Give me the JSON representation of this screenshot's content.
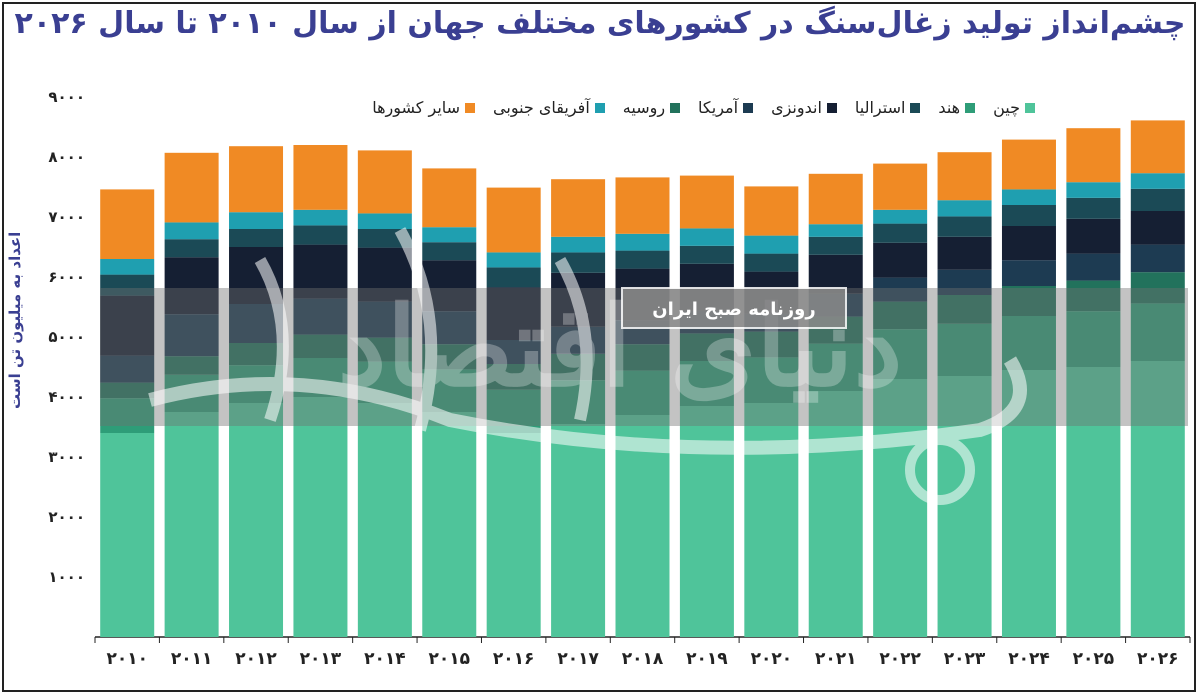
{
  "title": "چشم‌انداز تولید زغال‌سنگ در کشورهای مختلف جهان از سال ۲۰۱۰ تا سال ۲۰۲۶",
  "watermark": {
    "logo_text": "دنیای اقتصاد",
    "badge_text": "روزنامه صبح ایران"
  },
  "colors": {
    "china": "#4fc49a",
    "india": "#2e9d78",
    "russia": "#22725c",
    "south_africa": "#1f9fb0",
    "usa": "#1d3b52",
    "indonesia": "#151f33",
    "australia": "#1b4a56",
    "other": "#f08a24"
  },
  "chart_data": {
    "type": "bar",
    "stacked": true,
    "title": "چشم‌انداز تولید زغال‌سنگ در کشورهای مختلف جهان از سال ۲۰۱۰ تا سال ۲۰۲۶",
    "ylabel": "اعداد به میلیون تن است",
    "xlabel": "",
    "ylim": [
      0,
      9000
    ],
    "y_ticks": [
      "۱۰۰۰",
      "۲۰۰۰",
      "۳۰۰۰",
      "۴۰۰۰",
      "۵۰۰۰",
      "۶۰۰۰",
      "۷۰۰۰",
      "۸۰۰۰",
      "۹۰۰۰"
    ],
    "y_tick_values": [
      1000,
      2000,
      3000,
      4000,
      5000,
      6000,
      7000,
      8000,
      9000
    ],
    "legend_position": "top",
    "categories": [
      "۲۰۱۰",
      "۲۰۱۱",
      "۲۰۱۲",
      "۲۰۱۳",
      "۲۰۱۴",
      "۲۰۱۵",
      "۲۰۱۶",
      "۲۰۱۷",
      "۲۰۱۸",
      "۲۰۱۹",
      "۲۰۲۰",
      "۲۰۲۱",
      "۲۰۲۲",
      "۲۰۲۳",
      "۲۰۲۴",
      "۲۰۲۵",
      "۲۰۲۶"
    ],
    "series": [
      {
        "key": "china",
        "name": "چین",
        "values": [
          3400,
          3750,
          3900,
          4000,
          3900,
          3750,
          3400,
          3550,
          3700,
          3850,
          3900,
          4100,
          4300,
          4350,
          4450,
          4500,
          4600
        ]
      },
      {
        "key": "india",
        "name": "هند",
        "values": [
          580,
          620,
          630,
          650,
          690,
          710,
          720,
          730,
          740,
          750,
          760,
          790,
          830,
          870,
          900,
          930,
          960
        ]
      },
      {
        "key": "russia",
        "name": "روسیه",
        "values": [
          260,
          310,
          370,
          390,
          400,
          420,
          430,
          440,
          440,
          460,
          430,
          450,
          460,
          480,
          500,
          510,
          520
        ]
      },
      {
        "key": "usa",
        "name": "آمریکا",
        "values": [
          450,
          700,
          650,
          600,
          600,
          550,
          400,
          450,
          400,
          380,
          300,
          380,
          400,
          420,
          430,
          450,
          460
        ]
      },
      {
        "key": "indonesia",
        "name": "اندونزی",
        "values": [
          1000,
          950,
          950,
          900,
          900,
          850,
          880,
          900,
          860,
          780,
          700,
          650,
          580,
          550,
          570,
          580,
          560
        ]
      },
      {
        "key": "australia",
        "name": "استرالیا",
        "values": [
          350,
          300,
          300,
          320,
          310,
          300,
          330,
          340,
          300,
          300,
          300,
          300,
          320,
          340,
          350,
          350,
          370
        ]
      },
      {
        "key": "south_africa",
        "name": "آفریقای جنوبی",
        "values": [
          260,
          280,
          280,
          260,
          260,
          250,
          250,
          260,
          280,
          290,
          300,
          210,
          230,
          270,
          260,
          260,
          260
        ]
      },
      {
        "key": "other",
        "name": "سایر کشورها",
        "values": [
          1160,
          1160,
          1100,
          1080,
          1050,
          980,
          1080,
          960,
          940,
          880,
          820,
          840,
          770,
          800,
          830,
          900,
          880
        ]
      }
    ]
  }
}
